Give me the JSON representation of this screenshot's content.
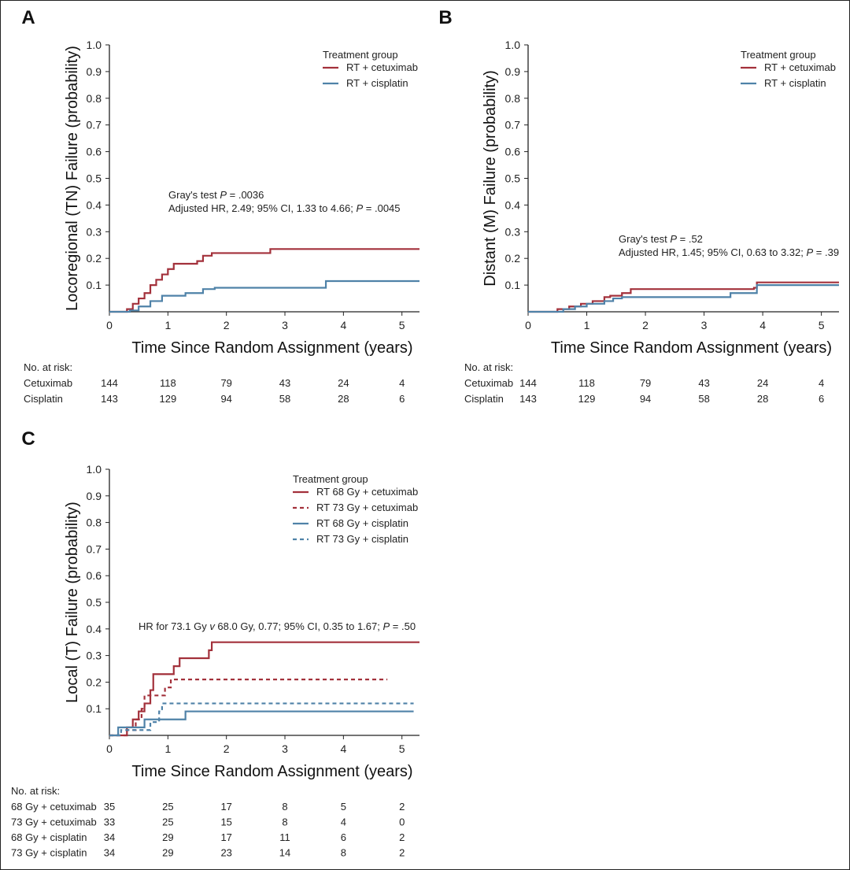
{
  "colors": {
    "cetuximab": "#a3313b",
    "cisplatin": "#4f82a8",
    "axis": "#222222"
  },
  "chart_data": [
    {
      "panel": "A",
      "type": "line",
      "ylabel": "Locoregional (TN) Failure (probability)",
      "xlabel": "Time Since Random Assignment (years)",
      "xlim": [
        0,
        5.3
      ],
      "ylim": [
        0,
        1.0
      ],
      "xticks": [
        "0",
        "1",
        "2",
        "3",
        "4",
        "5"
      ],
      "yticks": [
        "0.1",
        "0.2",
        "0.3",
        "0.4",
        "0.5",
        "0.6",
        "0.7",
        "0.8",
        "0.9",
        "1.0"
      ],
      "legend_title": "Treatment group",
      "series": [
        {
          "name": "RT + cetuximab",
          "color": "#a3313b",
          "dash": false,
          "points": [
            [
              0,
              0
            ],
            [
              0.3,
              0.01
            ],
            [
              0.4,
              0.03
            ],
            [
              0.5,
              0.05
            ],
            [
              0.6,
              0.07
            ],
            [
              0.7,
              0.1
            ],
            [
              0.8,
              0.12
            ],
            [
              0.9,
              0.14
            ],
            [
              1.0,
              0.16
            ],
            [
              1.1,
              0.18
            ],
            [
              1.5,
              0.19
            ],
            [
              1.6,
              0.21
            ],
            [
              1.75,
              0.22
            ],
            [
              2.75,
              0.235
            ],
            [
              5.3,
              0.235
            ]
          ]
        },
        {
          "name": "RT + cisplatin",
          "color": "#4f82a8",
          "dash": false,
          "points": [
            [
              0,
              0
            ],
            [
              0.35,
              0.005
            ],
            [
              0.5,
              0.02
            ],
            [
              0.7,
              0.04
            ],
            [
              0.9,
              0.06
            ],
            [
              1.3,
              0.07
            ],
            [
              1.6,
              0.085
            ],
            [
              1.8,
              0.09
            ],
            [
              3.7,
              0.09
            ],
            [
              3.7,
              0.115
            ],
            [
              5.3,
              0.115
            ]
          ]
        }
      ],
      "annotation": [
        "Gray's test P = .0036",
        "Adjusted HR, 2.49; 95% CI, 1.33 to 4.66; P = .0045"
      ],
      "risk_title": "No. at risk:",
      "risk_rows": [
        {
          "label": "Cetuximab",
          "values": [
            "144",
            "118",
            "79",
            "43",
            "24",
            "4"
          ]
        },
        {
          "label": "Cisplatin",
          "values": [
            "143",
            "129",
            "94",
            "58",
            "28",
            "6"
          ]
        }
      ]
    },
    {
      "panel": "B",
      "type": "line",
      "ylabel": "Distant (M) Failure (probability)",
      "xlabel": "Time Since Random Assignment (years)",
      "xlim": [
        0,
        5.3
      ],
      "ylim": [
        0,
        1.0
      ],
      "xticks": [
        "0",
        "1",
        "2",
        "3",
        "4",
        "5"
      ],
      "yticks": [
        "0.1",
        "0.2",
        "0.3",
        "0.4",
        "0.5",
        "0.6",
        "0.7",
        "0.8",
        "0.9",
        "1.0"
      ],
      "legend_title": "Treatment group",
      "series": [
        {
          "name": "RT + cetuximab",
          "color": "#a3313b",
          "dash": false,
          "points": [
            [
              0,
              0
            ],
            [
              0.5,
              0.01
            ],
            [
              0.7,
              0.02
            ],
            [
              0.9,
              0.03
            ],
            [
              1.1,
              0.04
            ],
            [
              1.3,
              0.055
            ],
            [
              1.4,
              0.06
            ],
            [
              1.6,
              0.07
            ],
            [
              1.75,
              0.085
            ],
            [
              3.85,
              0.09
            ],
            [
              3.9,
              0.11
            ],
            [
              5.3,
              0.11
            ]
          ]
        },
        {
          "name": "RT + cisplatin",
          "color": "#4f82a8",
          "dash": false,
          "points": [
            [
              0,
              0
            ],
            [
              0.6,
              0.01
            ],
            [
              0.8,
              0.02
            ],
            [
              1.0,
              0.03
            ],
            [
              1.3,
              0.04
            ],
            [
              1.45,
              0.05
            ],
            [
              1.6,
              0.055
            ],
            [
              3.45,
              0.055
            ],
            [
              3.45,
              0.07
            ],
            [
              3.85,
              0.07
            ],
            [
              3.9,
              0.1
            ],
            [
              5.3,
              0.1
            ]
          ]
        }
      ],
      "annotation": [
        "Gray's test P = .52",
        "Adjusted HR, 1.45; 95% CI, 0.63 to 3.32; P = .39"
      ],
      "risk_title": "No. at risk:",
      "risk_rows": [
        {
          "label": "Cetuximab",
          "values": [
            "144",
            "118",
            "79",
            "43",
            "24",
            "4"
          ]
        },
        {
          "label": "Cisplatin",
          "values": [
            "143",
            "129",
            "94",
            "58",
            "28",
            "6"
          ]
        }
      ]
    },
    {
      "panel": "C",
      "type": "line",
      "ylabel": "Local (T) Failure (probability)",
      "xlabel": "Time Since Random Assignment (years)",
      "xlim": [
        0,
        5.3
      ],
      "ylim": [
        0,
        1.0
      ],
      "xticks": [
        "0",
        "1",
        "2",
        "3",
        "4",
        "5"
      ],
      "yticks": [
        "0.1",
        "0.2",
        "0.3",
        "0.4",
        "0.5",
        "0.6",
        "0.7",
        "0.8",
        "0.9",
        "1.0"
      ],
      "legend_title": "Treatment group",
      "series": [
        {
          "name": "RT 68 Gy + cetuximab",
          "color": "#a3313b",
          "dash": false,
          "points": [
            [
              0,
              0
            ],
            [
              0.3,
              0.03
            ],
            [
              0.4,
              0.06
            ],
            [
              0.5,
              0.09
            ],
            [
              0.6,
              0.12
            ],
            [
              0.7,
              0.17
            ],
            [
              0.75,
              0.23
            ],
            [
              1.1,
              0.26
            ],
            [
              1.2,
              0.29
            ],
            [
              1.7,
              0.32
            ],
            [
              1.75,
              0.35
            ],
            [
              5.3,
              0.35
            ]
          ]
        },
        {
          "name": "RT 73 Gy + cetuximab",
          "color": "#a3313b",
          "dash": true,
          "points": [
            [
              0,
              0
            ],
            [
              0.3,
              0.02
            ],
            [
              0.45,
              0.06
            ],
            [
              0.55,
              0.1
            ],
            [
              0.6,
              0.15
            ],
            [
              0.8,
              0.15
            ],
            [
              0.95,
              0.18
            ],
            [
              1.05,
              0.21
            ],
            [
              4.75,
              0.21
            ]
          ]
        },
        {
          "name": "RT 68 Gy + cisplatin",
          "color": "#4f82a8",
          "dash": false,
          "points": [
            [
              0,
              0
            ],
            [
              0.15,
              0.03
            ],
            [
              0.6,
              0.06
            ],
            [
              1.2,
              0.06
            ],
            [
              1.3,
              0.09
            ],
            [
              5.2,
              0.09
            ]
          ]
        },
        {
          "name": "RT 73 Gy + cisplatin",
          "color": "#4f82a8",
          "dash": true,
          "points": [
            [
              0,
              0
            ],
            [
              0.2,
              0.02
            ],
            [
              0.7,
              0.05
            ],
            [
              0.85,
              0.09
            ],
            [
              0.9,
              0.12
            ],
            [
              5.2,
              0.12
            ]
          ]
        }
      ],
      "annotation": [
        "HR for 73.1 Gy v 68.0 Gy, 0.77; 95% CI, 0.35 to 1.67; P = .50"
      ],
      "risk_title": "No. at risk:",
      "risk_rows": [
        {
          "label": "68 Gy + cetuximab",
          "values": [
            "35",
            "25",
            "17",
            "8",
            "5",
            "2"
          ]
        },
        {
          "label": "73 Gy + cetuximab",
          "values": [
            "33",
            "25",
            "15",
            "8",
            "4",
            "0"
          ]
        },
        {
          "label": "68 Gy + cisplatin",
          "values": [
            "34",
            "29",
            "17",
            "11",
            "6",
            "2"
          ]
        },
        {
          "label": "73 Gy + cisplatin",
          "values": [
            "34",
            "29",
            "23",
            "14",
            "8",
            "2"
          ]
        }
      ]
    }
  ]
}
